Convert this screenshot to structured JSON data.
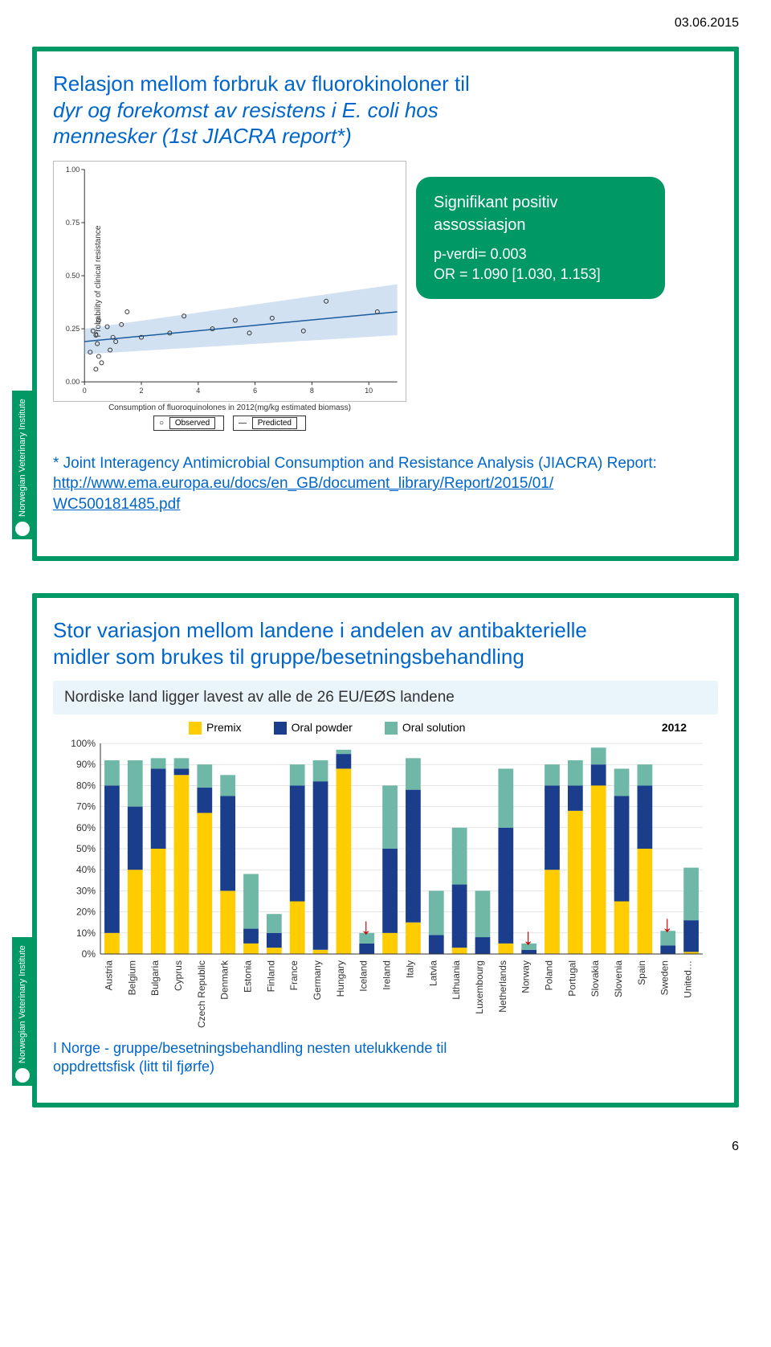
{
  "page": {
    "date": "03.06.2015",
    "number": "6"
  },
  "institute": "Norwegian Veterinary Institute",
  "slide1": {
    "title_line1": "Relasjon mellom forbruk av fluorokinoloner til",
    "title_line2": "dyr og forekomst av resistens i E. coli hos",
    "title_line3": "mennesker (1st JIACRA report*)",
    "callout": {
      "title": "Signifikant positiv assossiasjon",
      "pvalue": "p-verdi= 0.003",
      "or": "OR = 1.090 [1.030, 1.153]"
    },
    "scatter": {
      "ylabel": "Probability of clinical resistance",
      "xlabel": "Consumption of fluoroquinolones in 2012(mg/kg estimated biomass)",
      "legend_observed": "Observed",
      "legend_predicted": "Predicted",
      "xlim": [
        0,
        11
      ],
      "ylim": [
        0,
        1.0
      ],
      "xticks": [
        0,
        2,
        4,
        6,
        8,
        10
      ],
      "yticks": [
        0.0,
        0.25,
        0.5,
        0.75,
        1.0
      ],
      "ytick_labels": [
        "0.00",
        "0.25",
        "0.50",
        "0.75",
        "1.00"
      ],
      "line_color": "#1a5c9e",
      "band_color": "#9bbde0",
      "point_color": "#333333",
      "background": "#ffffff",
      "points": [
        [
          0.2,
          0.14
        ],
        [
          0.3,
          0.24
        ],
        [
          0.4,
          0.06
        ],
        [
          0.45,
          0.18
        ],
        [
          0.4,
          0.22
        ],
        [
          0.5,
          0.12
        ],
        [
          0.5,
          0.29
        ],
        [
          0.6,
          0.09
        ],
        [
          0.8,
          0.26
        ],
        [
          0.9,
          0.15
        ],
        [
          1.0,
          0.21
        ],
        [
          1.1,
          0.19
        ],
        [
          1.3,
          0.27
        ],
        [
          1.5,
          0.33
        ],
        [
          2.0,
          0.21
        ],
        [
          3.0,
          0.23
        ],
        [
          3.5,
          0.31
        ],
        [
          4.5,
          0.25
        ],
        [
          5.3,
          0.29
        ],
        [
          5.8,
          0.23
        ],
        [
          6.6,
          0.3
        ],
        [
          7.7,
          0.24
        ],
        [
          8.5,
          0.38
        ],
        [
          10.3,
          0.33
        ]
      ],
      "fit_y0": 0.19,
      "fit_y1": 0.33,
      "band_y0_low": 0.13,
      "band_y0_high": 0.25,
      "band_y1_low": 0.22,
      "band_y1_high": 0.46
    },
    "citation": {
      "prefix": "* Joint Interagency Antimicrobial Consumption and Resistance Analysis (JIACRA) Report:",
      "url_line1": "http://www.ema.europa.eu/docs/en_GB/document_library/Report/2015/01/",
      "url_line2": "WC500181485.pdf"
    }
  },
  "slide2": {
    "title_line1": "Stor variasjon mellom landene i andelen av antibakterielle",
    "title_line2": "midler som brukes til gruppe/besetningsbehandling",
    "subtitle": "Nordiske land ligger lavest av alle de 26 EU/EØS landene",
    "year": "2012",
    "legend": {
      "premix": "Premix",
      "powder": "Oral powder",
      "solution": "Oral solution"
    },
    "colors": {
      "premix": "#ffcc00",
      "powder": "#1a3e8c",
      "solution": "#6fb8a8",
      "axis": "#333333",
      "grid": "#cccccc",
      "tick_label": "#333333"
    },
    "ylabels": [
      "0%",
      "10%",
      "20%",
      "30%",
      "40%",
      "50%",
      "60%",
      "70%",
      "80%",
      "90%",
      "100%"
    ],
    "bar_width": 0.65,
    "countries": [
      "Austria",
      "Belgium",
      "Bulgaria",
      "Cyprus",
      "Czech Republic",
      "Denmark",
      "Estonia",
      "Finland",
      "France",
      "Germany",
      "Hungary",
      "Iceland",
      "Ireland",
      "Italy",
      "Latvia",
      "Lithuania",
      "Luxembourg",
      "Netherlands",
      "Norway",
      "Poland",
      "Portugal",
      "Slovakia",
      "Slovenia",
      "Spain",
      "Sweden",
      "United…"
    ],
    "series": {
      "premix": [
        10,
        40,
        50,
        85,
        67,
        30,
        5,
        3,
        25,
        2,
        88,
        0,
        10,
        15,
        0,
        3,
        0,
        5,
        0,
        40,
        68,
        80,
        25,
        50,
        0,
        1
      ],
      "powder": [
        70,
        30,
        38,
        3,
        12,
        45,
        7,
        7,
        55,
        80,
        7,
        5,
        40,
        63,
        9,
        30,
        8,
        55,
        2,
        40,
        12,
        10,
        50,
        30,
        4,
        15
      ],
      "solution": [
        12,
        22,
        5,
        5,
        11,
        10,
        26,
        9,
        10,
        10,
        2,
        5,
        30,
        15,
        21,
        27,
        22,
        28,
        3,
        10,
        12,
        8,
        13,
        10,
        7,
        25
      ]
    },
    "arrows_at": [
      "Iceland",
      "Norway",
      "Sweden"
    ],
    "footer_line1": "I Norge - gruppe/besetningsbehandling  nesten utelukkende til",
    "footer_line2": "oppdrettsfisk (litt til fjørfe)"
  }
}
